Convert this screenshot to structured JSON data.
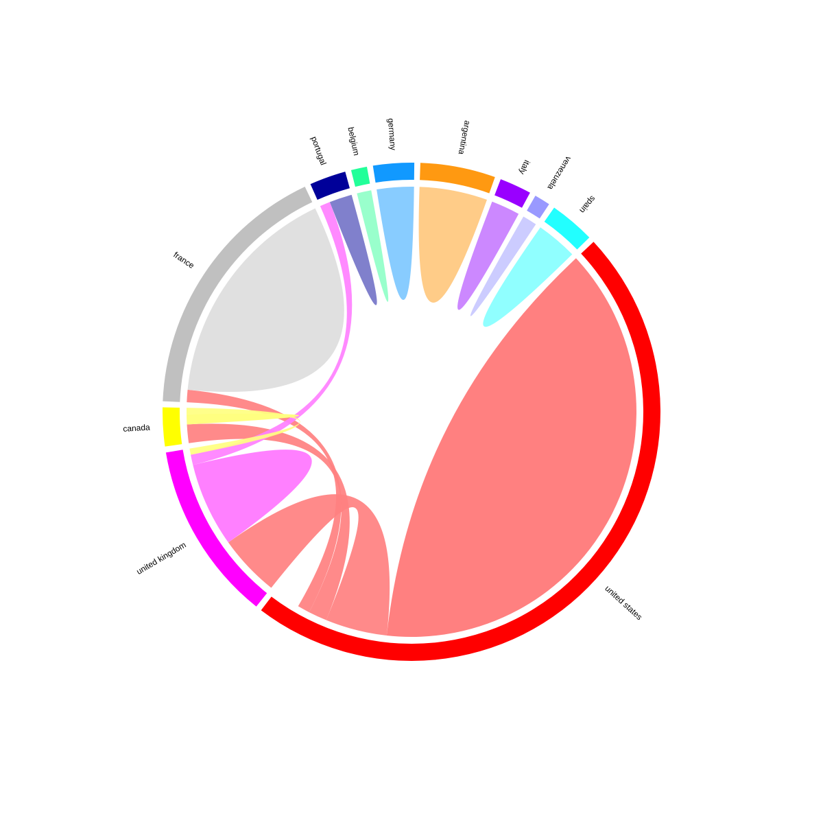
{
  "chart_data": {
    "type": "chord",
    "title": "",
    "groups": [
      {
        "name": "united states",
        "color": "#FF0000",
        "ribbon_color": "#FF8080",
        "value": 320
      },
      {
        "name": "united kingdom",
        "color": "#FF00FF",
        "ribbon_color": "#FF80FF",
        "value": 79
      },
      {
        "name": "canada",
        "color": "#FFFF00",
        "ribbon_color": "#FFFF80",
        "value": 17
      },
      {
        "name": "france",
        "color": "#C0C0C0",
        "ribbon_color": "#E0E0E0",
        "value": 117
      },
      {
        "name": "portugal",
        "color": "#000099",
        "ribbon_color": "#8080CC",
        "value": 16
      },
      {
        "name": "belgium",
        "color": "#22FF99",
        "ribbon_color": "#99FFCC",
        "value": 7
      },
      {
        "name": "germany",
        "color": "#1199FF",
        "ribbon_color": "#88CCFF",
        "value": 18
      },
      {
        "name": "argentina",
        "color": "#FF9911",
        "ribbon_color": "#FFCC88",
        "value": 33
      },
      {
        "name": "italy",
        "color": "#9900FF",
        "ribbon_color": "#CC88FF",
        "value": 14
      },
      {
        "name": "venezuela",
        "color": "#9999FF",
        "ribbon_color": "#CCCCFF",
        "value": 7
      },
      {
        "name": "spain",
        "color": "#22FFFF",
        "ribbon_color": "#90FFFF",
        "value": 20
      }
    ],
    "links": [
      {
        "source": "united states",
        "target": "united states",
        "value": 262
      },
      {
        "source": "united states",
        "target": "united kingdom",
        "value": 30
      },
      {
        "source": "united states",
        "target": "canada",
        "value": 9
      },
      {
        "source": "united states",
        "target": "france",
        "value": 6
      },
      {
        "source": "united kingdom",
        "target": "united kingdom",
        "value": 41
      },
      {
        "source": "united kingdom",
        "target": "portugal",
        "value": 5
      },
      {
        "source": "canada",
        "target": "canada",
        "value": 5
      },
      {
        "source": "canada",
        "target": "united kingdom",
        "value": 3
      },
      {
        "source": "france",
        "target": "france",
        "value": 111
      },
      {
        "source": "portugal",
        "target": "portugal",
        "value": 11
      },
      {
        "source": "belgium",
        "target": "belgium",
        "value": 7
      },
      {
        "source": "germany",
        "target": "germany",
        "value": 18
      },
      {
        "source": "argentina",
        "target": "argentina",
        "value": 33
      },
      {
        "source": "italy",
        "target": "italy",
        "value": 14
      },
      {
        "source": "venezuela",
        "target": "venezuela",
        "value": 7
      },
      {
        "source": "spain",
        "target": "spain",
        "value": 20
      }
    ]
  }
}
